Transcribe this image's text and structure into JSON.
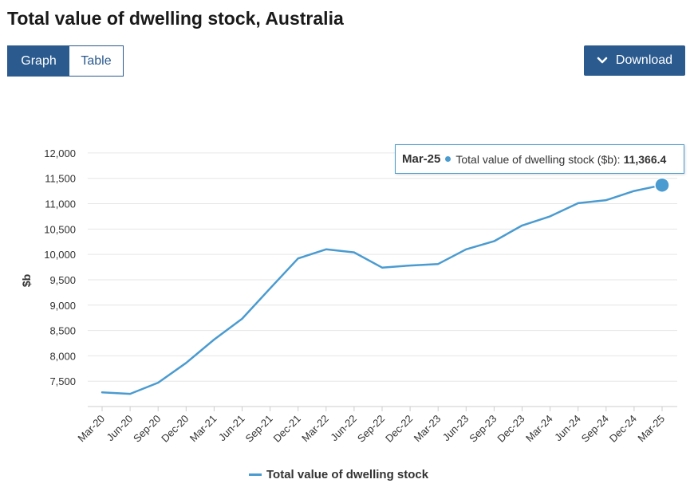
{
  "title": "Total value of dwelling stock, Australia",
  "view_toggle": {
    "graph_label": "Graph",
    "table_label": "Table",
    "selected": "Graph"
  },
  "download": {
    "label": "Download",
    "icon": "chevron-down-icon"
  },
  "colors": {
    "accent": "#2a5a8e",
    "series": "#4a9bd0",
    "grid": "#e6e6e6"
  },
  "chart_data": {
    "type": "line",
    "title": "Total value of dwelling stock, Australia",
    "xlabel": "",
    "ylabel": "$b",
    "x": [
      "Mar-20",
      "Jun-20",
      "Sep-20",
      "Dec-20",
      "Mar-21",
      "Jun-21",
      "Sep-21",
      "Dec-21",
      "Mar-22",
      "Jun-22",
      "Sep-22",
      "Dec-22",
      "Mar-23",
      "Jun-23",
      "Sep-23",
      "Dec-23",
      "Mar-24",
      "Jun-24",
      "Sep-24",
      "Dec-24",
      "Mar-25"
    ],
    "series": [
      {
        "name": "Total value of dwelling stock",
        "values": [
          7280,
          7250,
          7470,
          7860,
          8320,
          8730,
          9330,
          9920,
          10100,
          10040,
          9740,
          9780,
          9810,
          10100,
          10260,
          10570,
          10750,
          11010,
          11070,
          11250,
          11366.4
        ]
      }
    ],
    "yticks": [
      7500,
      8000,
      8500,
      9000,
      9500,
      10000,
      10500,
      11000,
      11500,
      12000
    ],
    "ylim": [
      7000,
      12250
    ],
    "grid": true,
    "legend_position": "bottom-center",
    "tooltip": {
      "x": "Mar-25",
      "series_label": "Total value of dwelling stock ($b):",
      "value_label": "11,366.4",
      "index": 20
    }
  }
}
